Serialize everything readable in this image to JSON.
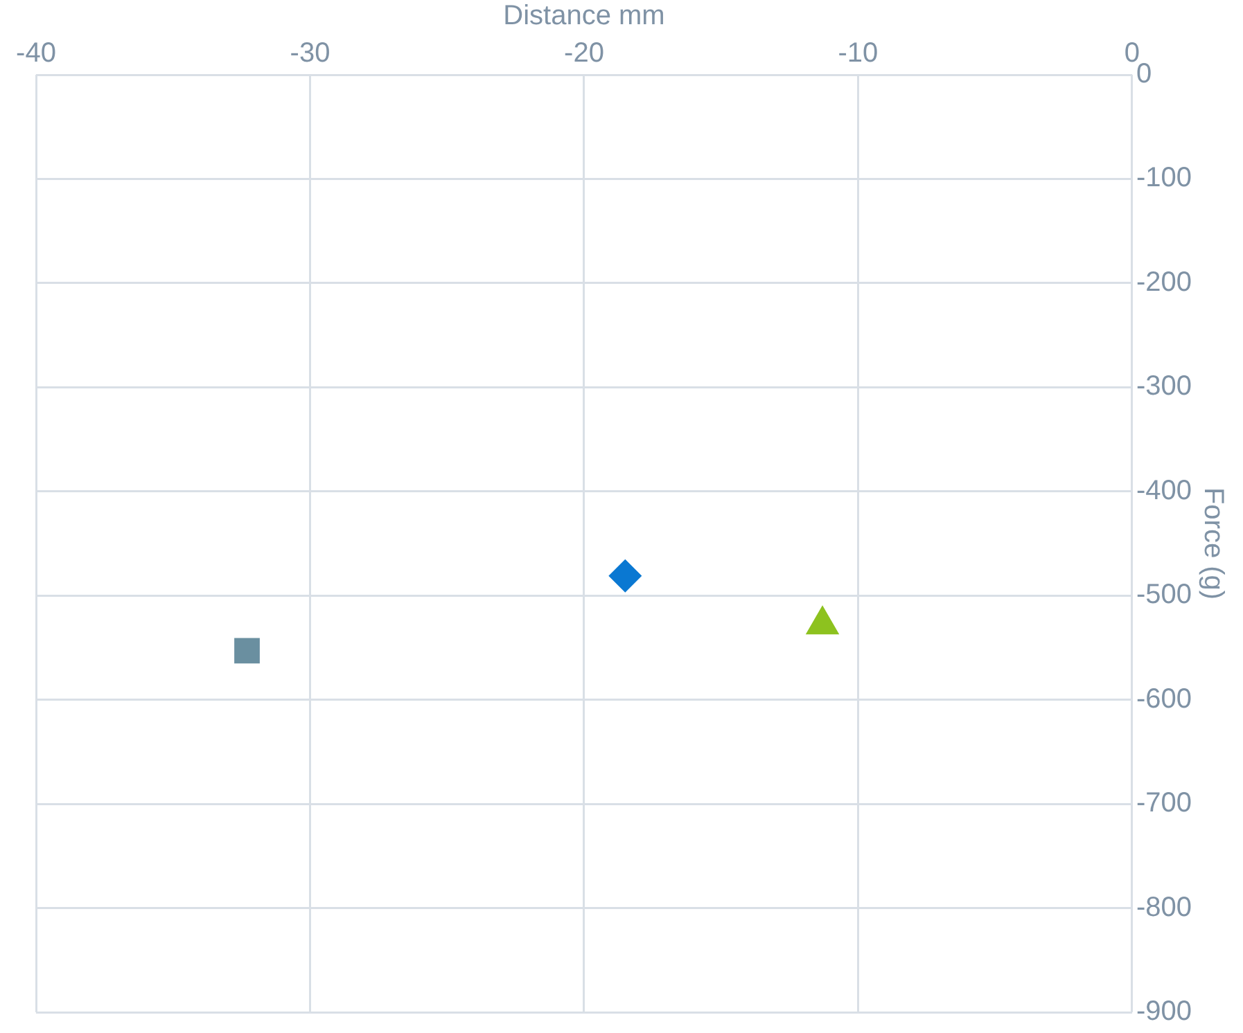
{
  "chart_data": {
    "type": "scatter",
    "xlabel": "Distance mm",
    "ylabel": "Force (g)",
    "xlim": [
      -40,
      0
    ],
    "xticks": [
      -40,
      -30,
      -20,
      -10,
      0
    ],
    "ylim": [
      -900,
      0
    ],
    "yticks": [
      -900,
      -800,
      -700,
      -600,
      -500,
      -400,
      -300,
      -200,
      -100,
      0
    ],
    "grid": true,
    "legend": false,
    "series": [
      {
        "color": "#6a8fa0",
        "marker": "square",
        "x": [
          -32.3
        ],
        "values": [
          -553
        ]
      },
      {
        "color": "#0a78d2",
        "marker": "diamond",
        "x": [
          -18.5
        ],
        "values": [
          -481
        ]
      },
      {
        "color": "#8dc21f",
        "marker": "triangle",
        "x": [
          -11.3
        ],
        "values": [
          -528
        ]
      }
    ]
  }
}
